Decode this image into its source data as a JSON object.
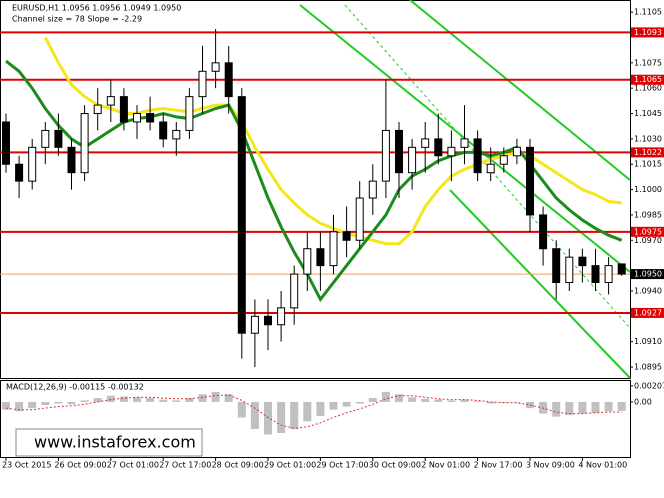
{
  "chart_data": {
    "type": "candlestick",
    "title": "EURUSD,H1  1.0956 1.0956 1.0949 1.0950",
    "subtitle": "Channel size = 78 Slope = -2.29",
    "categories": [
      "23 Oct 2015",
      null,
      null,
      null,
      "26 Oct 09:00",
      null,
      null,
      null,
      "27 Oct 01:00",
      null,
      null,
      null,
      "27 Oct 17:00",
      null,
      null,
      null,
      "28 Oct 09:00",
      null,
      null,
      null,
      "29 Oct 01:00",
      null,
      null,
      null,
      "29 Oct 17:00",
      null,
      null,
      null,
      "30 Oct 09:00",
      null,
      null,
      null,
      "2 Nov 01:00",
      null,
      null,
      null,
      "2 Nov 17:00",
      null,
      null,
      null,
      "3 Nov 09:00",
      null,
      null,
      null,
      "4 Nov 01:00",
      null,
      null,
      null
    ],
    "ohlc": [
      [
        1.104,
        1.1045,
        1.101,
        1.1015
      ],
      [
        1.1015,
        1.102,
        1.0995,
        1.1005
      ],
      [
        1.1005,
        1.103,
        1.1,
        1.1025
      ],
      [
        1.1025,
        1.104,
        1.1015,
        1.1035
      ],
      [
        1.1035,
        1.1045,
        1.102,
        1.1025
      ],
      [
        1.1025,
        1.103,
        1.1,
        1.101
      ],
      [
        1.101,
        1.105,
        1.1005,
        1.1045
      ],
      [
        1.1045,
        1.106,
        1.1035,
        1.105
      ],
      [
        1.105,
        1.1065,
        1.104,
        1.1055
      ],
      [
        1.1055,
        1.106,
        1.1035,
        1.104
      ],
      [
        1.104,
        1.105,
        1.103,
        1.1045
      ],
      [
        1.1045,
        1.1055,
        1.1035,
        1.104
      ],
      [
        1.104,
        1.1045,
        1.1025,
        1.103
      ],
      [
        1.103,
        1.104,
        1.102,
        1.1035
      ],
      [
        1.1035,
        1.106,
        1.103,
        1.1055
      ],
      [
        1.1055,
        1.1085,
        1.1045,
        1.107
      ],
      [
        1.107,
        1.1095,
        1.106,
        1.1075
      ],
      [
        1.1075,
        1.1085,
        1.1045,
        1.1055
      ],
      [
        1.1055,
        1.106,
        1.09,
        1.0915
      ],
      [
        1.0915,
        1.0935,
        1.0895,
        1.0925
      ],
      [
        1.0925,
        1.0935,
        1.0905,
        1.092
      ],
      [
        1.092,
        1.094,
        1.091,
        1.093
      ],
      [
        1.093,
        1.0955,
        1.092,
        1.095
      ],
      [
        1.095,
        1.0975,
        1.094,
        1.0965
      ],
      [
        1.0965,
        1.0975,
        1.094,
        1.0955
      ],
      [
        1.0955,
        1.0985,
        1.095,
        1.0975
      ],
      [
        1.0975,
        1.099,
        1.096,
        1.097
      ],
      [
        1.097,
        1.1005,
        1.0965,
        1.0995
      ],
      [
        1.0995,
        1.1015,
        1.0985,
        1.1005
      ],
      [
        1.1005,
        1.1065,
        1.0995,
        1.1035
      ],
      [
        1.1035,
        1.104,
        1.0995,
        1.101
      ],
      [
        1.101,
        1.103,
        1.1,
        1.1025
      ],
      [
        1.1025,
        1.104,
        1.101,
        1.103
      ],
      [
        1.103,
        1.1045,
        1.1015,
        1.102
      ],
      [
        1.102,
        1.1035,
        1.1005,
        1.1025
      ],
      [
        1.1025,
        1.105,
        1.1015,
        1.103
      ],
      [
        1.103,
        1.1035,
        1.1005,
        1.101
      ],
      [
        1.101,
        1.1025,
        1.1005,
        1.1015
      ],
      [
        1.1015,
        1.1025,
        1.101,
        1.102
      ],
      [
        1.102,
        1.103,
        1.1015,
        1.1025
      ],
      [
        1.1025,
        1.103,
        1.0975,
        1.0985
      ],
      [
        1.0985,
        1.099,
        1.0955,
        1.0965
      ],
      [
        1.0965,
        1.097,
        1.0935,
        1.0945
      ],
      [
        1.0945,
        1.0965,
        1.094,
        1.096
      ],
      [
        1.096,
        1.0965,
        1.0945,
        1.0955
      ],
      [
        1.0955,
        1.0965,
        1.094,
        1.0945
      ],
      [
        1.0945,
        1.096,
        1.0938,
        1.0955
      ],
      [
        1.0956,
        1.0956,
        1.0949,
        1.095
      ]
    ],
    "series": [
      {
        "color": "#f5e61a",
        "values": [
          null,
          null,
          null,
          1.109,
          1.1075,
          1.1062,
          1.1055,
          1.105,
          1.1048,
          1.1045,
          1.1045,
          1.1047,
          1.1048,
          1.1047,
          1.1046,
          1.1048,
          1.105,
          1.105,
          1.104,
          1.1025,
          1.1012,
          1.1,
          1.0992,
          1.0985,
          1.098,
          1.0977,
          1.0974,
          1.0972,
          1.097,
          1.0968,
          1.0968,
          1.0975,
          1.099,
          1.1,
          1.1008,
          1.1012,
          1.1015,
          1.1018,
          1.102,
          1.1022,
          1.102,
          1.1015,
          1.101,
          1.1005,
          1.1,
          1.0997,
          1.0993,
          1.0992
        ]
      },
      {
        "color": "#1a8c1a",
        "values": [
          1.1076,
          1.107,
          1.106,
          1.1048,
          1.1038,
          1.103,
          1.1025,
          1.103,
          1.1035,
          1.104,
          1.1042,
          1.1043,
          1.1045,
          1.1043,
          1.1042,
          1.1045,
          1.1048,
          1.105,
          1.1035,
          1.1015,
          1.0995,
          1.0978,
          1.0963,
          1.095,
          1.0935,
          1.0945,
          1.0955,
          1.0965,
          1.0975,
          1.0985,
          1.1,
          1.1008,
          1.1012,
          1.1017,
          1.102,
          1.1022,
          1.1022,
          1.102,
          1.1022,
          1.1025,
          1.1015,
          1.1005,
          1.0995,
          1.0988,
          1.0982,
          1.0977,
          1.0973,
          1.097
        ]
      }
    ],
    "ylim": [
      1.08885,
      1.1111
    ],
    "yticks": [
      1.1105,
      1.1075,
      {
        "value": 1.106,
        "label": "1.1060"
      },
      1.1045,
      {
        "value": 1.103,
        "label": "1.1030"
      },
      1.1015,
      {
        "value": 1.1,
        "label": "1.1000"
      },
      1.0985,
      {
        "value": 1.097,
        "label": "1.0970"
      },
      {
        "value": 1.094,
        "label": "1.0940"
      },
      {
        "value": 1.091,
        "label": "1.0910"
      },
      1.0895
    ],
    "levels": [
      1.1093,
      1.1065,
      1.1022,
      1.0975,
      1.0927
    ],
    "level_color": "#e00000",
    "current_price": {
      "value": 1.095,
      "label": "1.0950"
    },
    "macd": {
      "title": "MACD(12,26,9) -0.00115 -0.00132",
      "values": [
        -0.001,
        -0.0012,
        -0.0008,
        -0.0004,
        -0.0002,
        -0.0003,
        0.0002,
        0.0005,
        0.0008,
        0.0007,
        0.0006,
        0.0005,
        0.0003,
        0.0002,
        0.0005,
        0.001,
        0.0013,
        0.001,
        -0.002,
        -0.0035,
        -0.0042,
        -0.004,
        -0.0035,
        -0.0025,
        -0.0018,
        -0.001,
        -0.0006,
        -0.0002,
        0.0005,
        0.0013,
        0.001,
        0.0006,
        0.0004,
        0.0003,
        0.0002,
        0.0003,
        0.0001,
        -0.0002,
        -0.0001,
        0,
        -0.0008,
        -0.0015,
        -0.0019,
        -0.0017,
        -0.0015,
        -0.0014,
        -0.0012,
        -0.00115
      ],
      "signal": [
        -0.0008,
        -0.001,
        -0.001,
        -0.0008,
        -0.0006,
        -0.0005,
        -0.0003,
        0,
        0.0003,
        0.0005,
        0.0006,
        0.0006,
        0.0005,
        0.0004,
        0.0004,
        0.0006,
        0.0008,
        0.0009,
        0.0002,
        -0.0008,
        -0.002,
        -0.003,
        -0.0034,
        -0.0032,
        -0.0027,
        -0.002,
        -0.0014,
        -0.0009,
        -0.0003,
        0.0004,
        0.0008,
        0.0008,
        0.0006,
        0.0004,
        0.0003,
        0.0003,
        0.0002,
        0,
        -0.0001,
        -0.0001,
        -0.0004,
        -0.0008,
        -0.0013,
        -0.0015,
        -0.0015,
        -0.0014,
        -0.0013,
        -0.00132
      ],
      "color": "#c0c0c0",
      "signal_color": "#e03030",
      "ylim": [
        -0.0071,
        0.0027
      ],
      "yticks": [
        0.00207,
        {
          "value": 0,
          "label": "0.00"
        }
      ]
    },
    "watermark": "www.instaforex.com"
  }
}
